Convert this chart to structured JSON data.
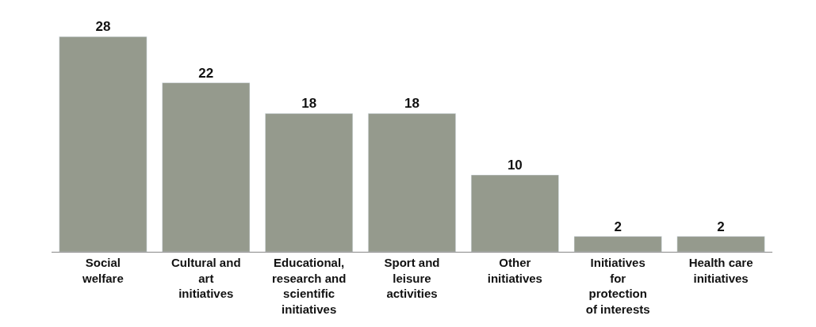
{
  "chart_data": {
    "type": "bar",
    "categories": [
      "Social welfare",
      "Cultural and art initiatives",
      "Educational, research and scientific initiatives",
      "Sport and leisure activities",
      "Other initiatives",
      "Initiatives for protection of interests",
      "Health care initiatives"
    ],
    "values": [
      28,
      22,
      18,
      18,
      10,
      2,
      2
    ],
    "color": "#959a8d",
    "data_labels": true
  }
}
